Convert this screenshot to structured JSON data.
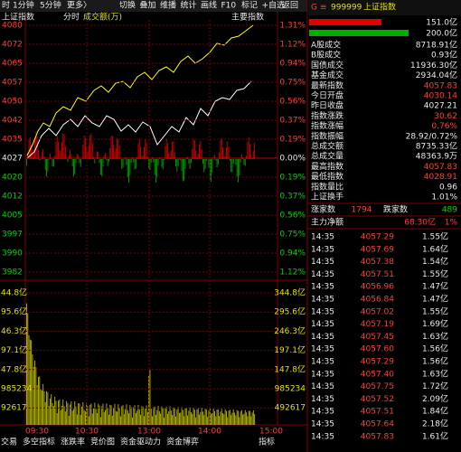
{
  "toolbar": {
    "left": [
      "时",
      "1分钟",
      "5分钟",
      "更多〉"
    ],
    "buttons": [
      "切换",
      "叠加",
      "维播",
      "统计",
      "画线",
      "F10",
      "标记",
      "+自选",
      "返回"
    ]
  },
  "chart_header": {
    "name": "上证指数",
    "mode": "分时",
    "indicator": "成交额(万)",
    "button": "主要指数"
  },
  "price_axis": {
    "left": [
      "4080",
      "4072",
      "4065",
      "4057",
      "4050",
      "4042",
      "4035",
      "4027",
      "4020",
      "4012",
      "4005",
      "3997",
      "3990",
      "3982"
    ],
    "right": [
      "1.31%",
      "1.12%",
      "0.94%",
      "0.75%",
      "0.56%",
      "0.37%",
      "0.19%",
      "0.00%",
      "0.19%",
      "0.37%",
      "0.56%",
      "0.75%",
      "0.94%",
      "1.12%"
    ]
  },
  "volume_axis": {
    "left": [
      "44.8亿",
      "95.6亿",
      "46.3亿",
      "97.1亿",
      "47.8亿",
      "985234",
      "92617"
    ],
    "right": [
      "344.8亿",
      "295.6亿",
      "246.3亿",
      "197.1亿",
      "147.8亿",
      "985234",
      "492617"
    ]
  },
  "time_axis": [
    "09:30",
    "10:30",
    "13:00",
    "14:00",
    "15:00"
  ],
  "bottom_tabs": [
    "交易",
    "多空指标",
    "涨跌率",
    "竞价图",
    "资金驱动力",
    "资金博弈",
    "指标"
  ],
  "quote": {
    "code": "999999",
    "name": "上证指数",
    "buy_bar": "151.0亿",
    "sell_bar": "200.0亿",
    "rows": [
      [
        "A股成交",
        "8718.91亿"
      ],
      [
        "B股成交",
        "0.93亿"
      ],
      [
        "国债成交",
        "11936.30亿"
      ],
      [
        "基金成交",
        "2934.04亿"
      ],
      [
        "最新指数",
        "4057.83"
      ],
      [
        "今日开盘",
        "4030.14"
      ],
      [
        "昨日收盘",
        "4027.21"
      ],
      [
        "指数涨跌",
        "30.62"
      ],
      [
        "指数涨幅",
        "0.76%"
      ],
      [
        "指数振幅",
        "28.92/0.72%"
      ],
      [
        "总成交额",
        "8735.33亿"
      ],
      [
        "总成交量",
        "48363.9万"
      ],
      [
        "最高指数",
        "4057.83"
      ],
      [
        "最低指数",
        "4028.91"
      ],
      [
        "指数量比",
        "0.96"
      ],
      [
        "上证换手",
        "1.01%"
      ]
    ],
    "up_label": "涨家数",
    "up": "1794",
    "down_label": "跌家数",
    "down": "489",
    "main_label": "主力净额",
    "main_value": "68.30亿",
    "main_pct": "1%"
  },
  "ticks": [
    [
      "14:35",
      "4057.29",
      "1.55亿"
    ],
    [
      "14:35",
      "4057.69",
      "1.64亿"
    ],
    [
      "14:35",
      "4057.38",
      "1.54亿"
    ],
    [
      "14:35",
      "4057.51",
      "1.55亿"
    ],
    [
      "14:35",
      "4056.96",
      "1.47亿"
    ],
    [
      "14:35",
      "4056.84",
      "1.47亿"
    ],
    [
      "14:35",
      "4057.02",
      "1.55亿"
    ],
    [
      "14:35",
      "4057.19",
      "1.69亿"
    ],
    [
      "14:35",
      "4057.45",
      "1.63亿"
    ],
    [
      "14:35",
      "4057.60",
      "1.56亿"
    ],
    [
      "14:35",
      "4057.29",
      "1.56亿"
    ],
    [
      "14:35",
      "4057.40",
      "1.63亿"
    ],
    [
      "14:35",
      "4057.75",
      "1.72亿"
    ],
    [
      "14:35",
      "4057.52",
      "2.09亿"
    ],
    [
      "14:35",
      "4057.51",
      "1.84亿"
    ],
    [
      "14:35",
      "4057.64",
      "2.18亿"
    ],
    [
      "14:35",
      "4057.83",
      "1.61亿"
    ]
  ]
}
